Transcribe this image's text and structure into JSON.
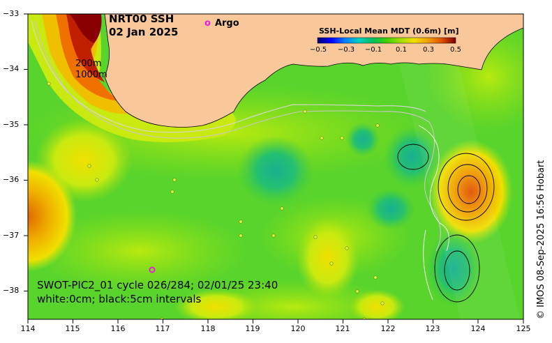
{
  "title": {
    "line1": "NRT00 SSH",
    "line2": "02 Jan 2025"
  },
  "argo_legend": {
    "marker": "o",
    "label": "Argo",
    "color": "#e81ed8"
  },
  "depth_labels": {
    "d200": "200m",
    "d1000": "1000m"
  },
  "colorbar": {
    "title": "SSH-Local Mean MDT (0.6m) [m]",
    "ticks": [
      "−0.5",
      "−0.3",
      "−0.1",
      "0.1",
      "0.3",
      "0.5"
    ],
    "colors": [
      "#00007a",
      "#0000ff",
      "#0080ff",
      "#00d0c0",
      "#00c060",
      "#40d000",
      "#a0e000",
      "#f0e000",
      "#f0a000",
      "#e05000",
      "#b01000",
      "#7a0000"
    ]
  },
  "pass_info": {
    "line1": "SWOT-PIC2_01 cycle 026/284; 02/01/25 23:40",
    "line2": "white:0cm; black:5cm intervals"
  },
  "credit": "© IMOS 08-Sep-2025 16:56 Hobart",
  "axes": {
    "lon_ticks": [
      "114",
      "115",
      "116",
      "117",
      "118",
      "119",
      "120",
      "121",
      "122",
      "123",
      "124",
      "125"
    ],
    "lat_ticks": [
      "−33",
      "−34",
      "−35",
      "−36",
      "−37",
      "−38"
    ]
  },
  "colors": {
    "land": "#f9c89a",
    "sea_mid": "#5ed82a",
    "sea_low": "#30c25a",
    "sea_high": "#b6ec1c",
    "warm": "#f0d000",
    "hot": "#e06000",
    "argo": "#e81ed8"
  }
}
